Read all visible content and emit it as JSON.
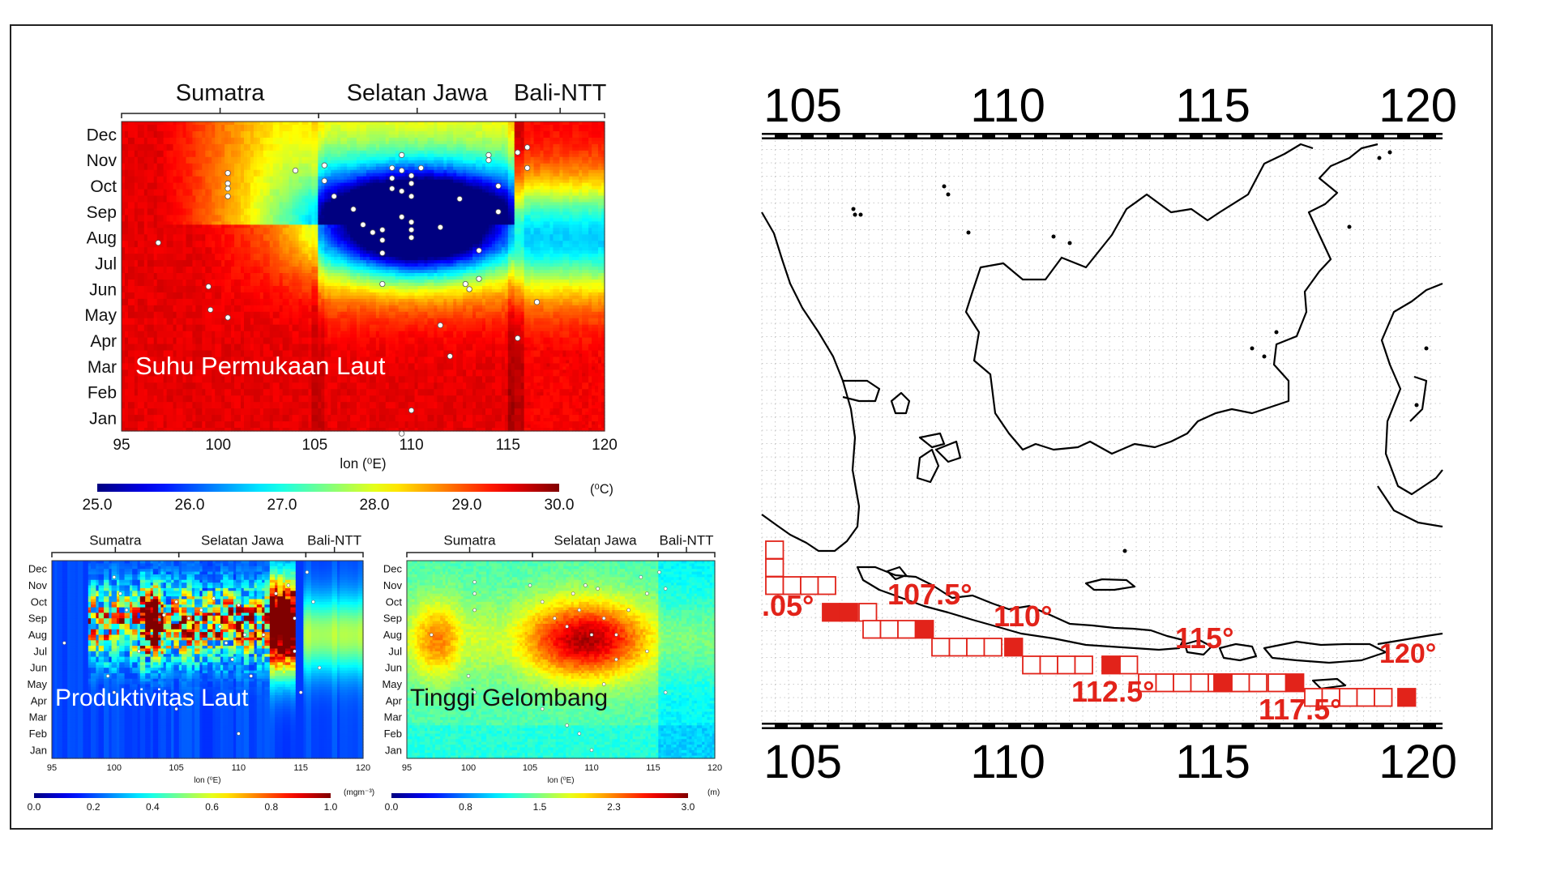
{
  "chart_data": [
    {
      "type": "heatmap",
      "title": "Suhu Permukaan Laut",
      "xlabel": "lon (⁰E)",
      "x_ticks": [
        "95",
        "100",
        "105",
        "110",
        "115",
        "120"
      ],
      "xlim": [
        95,
        120
      ],
      "y_ticks": [
        "Jan",
        "Feb",
        "Mar",
        "Apr",
        "May",
        "Jun",
        "Jul",
        "Aug",
        "Sep",
        "Oct",
        "Nov",
        "Dec"
      ],
      "regions": [
        "Sumatra",
        "Selatan Jawa",
        "Bali-NTT"
      ],
      "colorbar": {
        "ticks": [
          "25.0",
          "26.0",
          "27.0",
          "28.0",
          "29.0",
          "30.0"
        ],
        "unit": "(⁰C)",
        "range": [
          25.0,
          30.0
        ]
      },
      "points": [
        [
          100.5,
          10.5
        ],
        [
          100.5,
          10.1
        ],
        [
          100.5,
          9.9
        ],
        [
          100.5,
          9.6
        ],
        [
          104,
          10.6
        ],
        [
          96.9,
          7.8
        ],
        [
          99.5,
          6.1
        ],
        [
          99.6,
          5.2
        ],
        [
          100.5,
          4.9
        ],
        [
          105.5,
          10.8
        ],
        [
          105.5,
          10.2
        ],
        [
          106,
          9.6
        ],
        [
          107,
          9.1
        ],
        [
          107.5,
          8.5
        ],
        [
          108,
          8.2
        ],
        [
          108.5,
          7.9
        ],
        [
          108.5,
          8.3
        ],
        [
          108.5,
          7.4
        ],
        [
          108.5,
          6.2
        ],
        [
          109,
          10.7
        ],
        [
          109,
          10.3
        ],
        [
          109,
          9.9
        ],
        [
          109.5,
          11.2
        ],
        [
          109.5,
          10.6
        ],
        [
          109.5,
          9.8
        ],
        [
          109.5,
          8.8
        ],
        [
          110,
          10.4
        ],
        [
          110,
          10.1
        ],
        [
          110,
          9.6
        ],
        [
          110,
          8.6
        ],
        [
          110,
          8.3
        ],
        [
          110,
          8.0
        ],
        [
          110.5,
          10.7
        ],
        [
          111.5,
          8.4
        ],
        [
          112.5,
          9.5
        ],
        [
          112.8,
          6.2
        ],
        [
          113,
          6.0
        ],
        [
          113.5,
          6.4
        ],
        [
          113.5,
          7.5
        ],
        [
          114,
          11.2
        ],
        [
          114,
          11.0
        ],
        [
          114.5,
          10.0
        ],
        [
          114.5,
          9.0
        ],
        [
          115.5,
          11.3
        ],
        [
          116,
          11.5
        ],
        [
          116,
          10.7
        ],
        [
          115.5,
          4.1
        ],
        [
          116.5,
          5.5
        ],
        [
          111.5,
          4.6
        ],
        [
          112,
          3.4
        ],
        [
          110,
          1.3
        ],
        [
          109.5,
          0.4
        ]
      ]
    },
    {
      "type": "heatmap",
      "title": "Produktivitas Laut",
      "xlabel": "lon (⁰E)",
      "x_ticks": [
        "95",
        "100",
        "105",
        "110",
        "115",
        "120"
      ],
      "xlim": [
        95,
        120
      ],
      "y_ticks": [
        "Jan",
        "Feb",
        "Mar",
        "Apr",
        "May",
        "Jun",
        "Jul",
        "Aug",
        "Sep",
        "Oct",
        "Nov",
        "Dec"
      ],
      "regions": [
        "Sumatra",
        "Selatan Jawa",
        "Bali-NTT"
      ],
      "colorbar": {
        "ticks": [
          "0.0",
          "0.2",
          "0.4",
          "0.6",
          "0.8",
          "1.0"
        ],
        "unit": "(mgm⁻³)",
        "range": [
          0.0,
          1.0
        ]
      }
    },
    {
      "type": "heatmap",
      "title": "Tinggi Gelombang",
      "xlabel": "lon (⁰E)",
      "x_ticks": [
        "95",
        "100",
        "105",
        "110",
        "115",
        "120"
      ],
      "xlim": [
        95,
        120
      ],
      "y_ticks": [
        "Jan",
        "Feb",
        "Mar",
        "Apr",
        "May",
        "Jun",
        "Jul",
        "Aug",
        "Sep",
        "Oct",
        "Nov",
        "Dec"
      ],
      "regions": [
        "Sumatra",
        "Selatan Jawa",
        "Bali-NTT"
      ],
      "colorbar": {
        "ticks": [
          "0.0",
          "0.8",
          "1.5",
          "2.3",
          "3.0"
        ],
        "unit": "(m)",
        "range": [
          0.0,
          3.0
        ]
      }
    }
  ],
  "map": {
    "lon_ticks": [
      "105",
      "110",
      "115",
      "120"
    ],
    "cell_labels": [
      ".05°",
      "107.5°",
      "110°",
      "112.5°",
      "115°",
      "117.5°",
      "120°"
    ],
    "colors": {
      "label": "#e2231a",
      "cell": "#e2231a",
      "coast": "#000000"
    }
  }
}
